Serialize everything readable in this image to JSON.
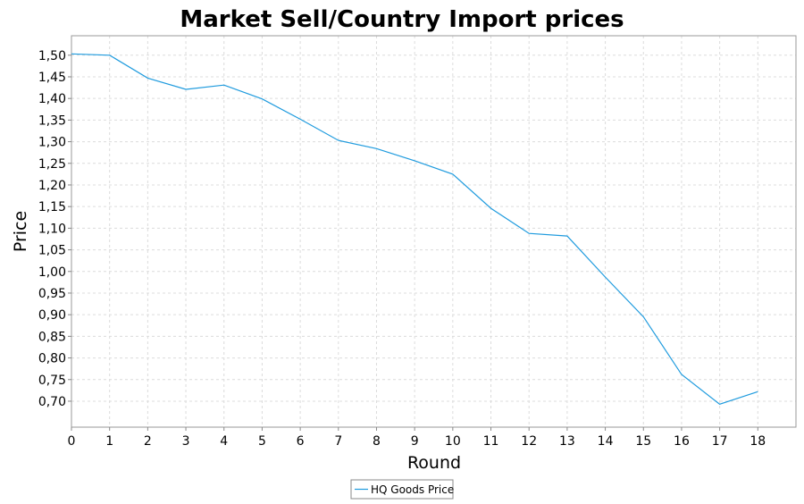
{
  "chart_data": {
    "type": "line",
    "title": "Market Sell/Country Import prices",
    "xlabel": "Round",
    "ylabel": "Price",
    "xlim": [
      0,
      19
    ],
    "ylim": [
      0.64,
      1.545
    ],
    "x_ticks": [
      0,
      1,
      2,
      3,
      4,
      5,
      6,
      7,
      8,
      9,
      10,
      11,
      12,
      13,
      14,
      15,
      16,
      17,
      18
    ],
    "y_ticks": [
      "0,70",
      "0,75",
      "0,80",
      "0,85",
      "0,90",
      "0,95",
      "1,00",
      "1,05",
      "1,10",
      "1,15",
      "1,20",
      "1,25",
      "1,30",
      "1,35",
      "1,40",
      "1,45",
      "1,50"
    ],
    "grid": true,
    "legend_position": "bottom-center",
    "series": [
      {
        "name": "HQ Goods Price",
        "color": "#1f9bde",
        "x": [
          0,
          1,
          2,
          3,
          4,
          5,
          6,
          7,
          8,
          9,
          10,
          11,
          12,
          13,
          14,
          15,
          16,
          17,
          18
        ],
        "y": [
          1.503,
          1.5,
          1.447,
          1.421,
          1.431,
          1.399,
          1.352,
          1.303,
          1.284,
          1.256,
          1.225,
          1.146,
          1.088,
          1.082,
          0.987,
          0.895,
          0.762,
          0.693,
          0.722
        ]
      }
    ]
  }
}
